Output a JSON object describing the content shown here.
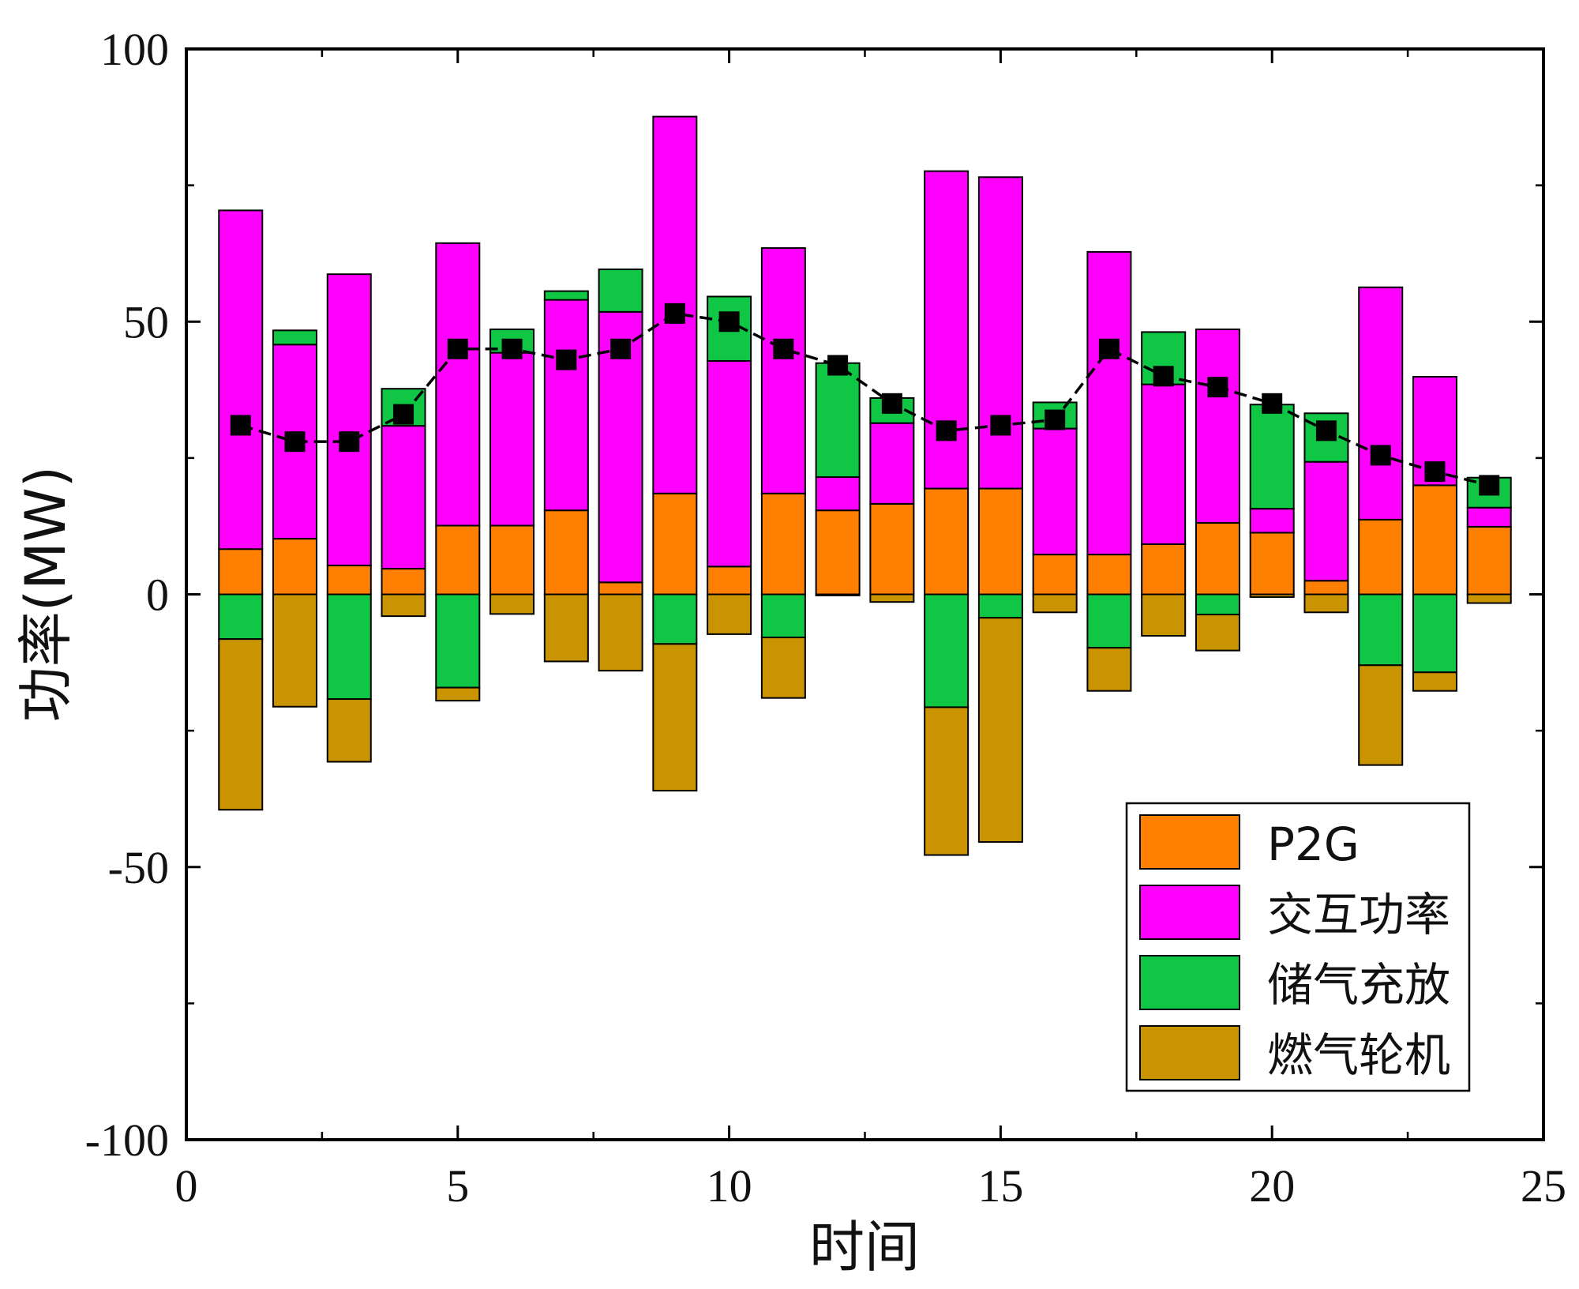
{
  "chart_data": {
    "type": "bar",
    "subtype": "stacked-bar-with-line",
    "title": "",
    "xlabel": "时间",
    "ylabel": "功率(MW)",
    "xlim": [
      0,
      25
    ],
    "ylim": [
      -100,
      100
    ],
    "xticks": [
      0,
      5,
      10,
      15,
      20,
      25
    ],
    "xtick_labels": [
      "0",
      "5",
      "10",
      "15",
      "20",
      "25"
    ],
    "yticks": [
      -100,
      -50,
      0,
      50,
      100
    ],
    "ytick_labels": [
      "-100",
      "-50",
      "0",
      "50",
      "100"
    ],
    "grid": false,
    "legend_position": "bottom-right",
    "x": [
      1,
      2,
      3,
      4,
      5,
      6,
      7,
      8,
      9,
      10,
      11,
      12,
      13,
      14,
      15,
      16,
      17,
      18,
      19,
      20,
      21,
      22,
      23,
      24
    ],
    "series": [
      {
        "name": "P2G",
        "color": "#ff7f00",
        "values": [
          8.3,
          10.2,
          5.3,
          4.7,
          12.6,
          12.6,
          15.4,
          2.2,
          18.5,
          5.1,
          18.5,
          15.4,
          16.6,
          19.4,
          19.4,
          7.3,
          7.3,
          9.2,
          13.1,
          11.3,
          2.5,
          13.7,
          20.0,
          12.4
        ]
      },
      {
        "name": "交互功率",
        "color": "#ff00ff",
        "values": [
          62.1,
          35.6,
          53.4,
          26.2,
          51.8,
          31.7,
          38.6,
          49.6,
          69.1,
          37.7,
          45.0,
          6.1,
          14.8,
          58.2,
          57.1,
          23.1,
          55.5,
          29.3,
          35.5,
          4.4,
          21.8,
          42.6,
          19.9,
          3.5
        ]
      },
      {
        "name": "储气充放",
        "color": "#10c745",
        "values": [
          -8.2,
          2.6,
          -19.2,
          6.8,
          -17.1,
          4.3,
          1.6,
          7.8,
          -9.1,
          11.8,
          -7.9,
          20.9,
          4.6,
          -20.7,
          -4.3,
          4.8,
          -9.8,
          9.6,
          -3.7,
          19.1,
          8.9,
          -13.0,
          -14.3,
          5.5
        ]
      },
      {
        "name": "燃气轮机",
        "color": "#c99400",
        "values": [
          -31.3,
          -20.6,
          -11.5,
          -4.0,
          -2.4,
          -3.6,
          -12.3,
          -14.0,
          -26.9,
          -7.3,
          -11.1,
          -0.2,
          -1.4,
          -27.1,
          -41.1,
          -3.3,
          -7.9,
          -7.6,
          -6.6,
          -0.5,
          -3.3,
          -18.3,
          -3.4,
          -1.6
        ]
      }
    ],
    "line_series": {
      "name": "",
      "style": "dashed line with square markers",
      "color": "#000000",
      "values": [
        31,
        28,
        28,
        33,
        45,
        45,
        43,
        45,
        51.5,
        50,
        45,
        42,
        35,
        30,
        31,
        32,
        45,
        40,
        38,
        35,
        30,
        25.5,
        22.5,
        20
      ]
    }
  }
}
